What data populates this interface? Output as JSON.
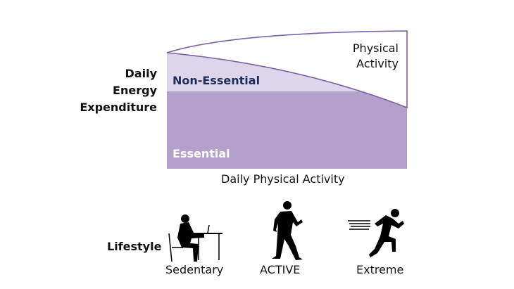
{
  "y_axis_label": [
    "Daily",
    "Energy",
    "Expenditure"
  ],
  "x_axis_label": "Daily Physical Activity",
  "regions": {
    "physical_activity": [
      "Physical",
      "Activity"
    ],
    "non_essential": "Non-Essential",
    "essential": "Essential"
  },
  "lifestyle": {
    "label": "Lifestyle",
    "levels": [
      "Sedentary",
      "ACTIVE",
      "Extreme"
    ]
  },
  "colors": {
    "essential": "#b3a1cc",
    "non_essential": "#ddd5ea",
    "outline": "#7b62a8",
    "non_essential_text": "#1f2d5a"
  }
}
